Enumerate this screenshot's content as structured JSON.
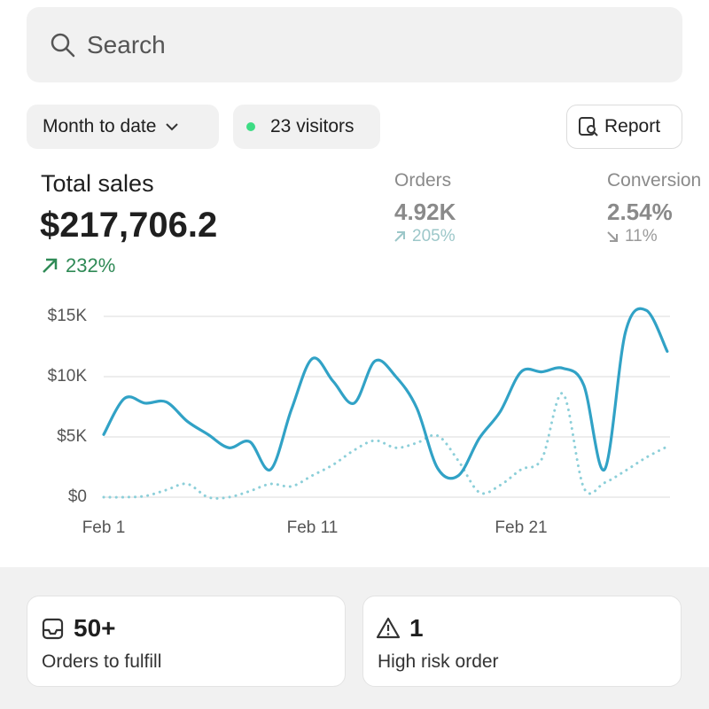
{
  "search": {
    "placeholder": "Search"
  },
  "filters": {
    "date_range": "Month to date",
    "visitors": "23 visitors",
    "report": "Report"
  },
  "metrics": [
    {
      "label": "Total sales",
      "value": "$217,706.2",
      "change": "232%"
    },
    {
      "label": "Orders",
      "value": "4.92K",
      "change": "205%"
    },
    {
      "label": "Conversion",
      "value": "2.54%",
      "change": "11%"
    }
  ],
  "cards": [
    {
      "value": "50+",
      "label": "Orders to fulfill"
    },
    {
      "value": "1",
      "label": "High risk order"
    }
  ],
  "chart_data": {
    "type": "line",
    "categories": [
      "Feb 1",
      null,
      null,
      null,
      null,
      null,
      null,
      null,
      null,
      null,
      "Feb 11",
      null,
      null,
      null,
      null,
      null,
      null,
      null,
      null,
      null,
      "Feb 21",
      null,
      null,
      null,
      null,
      null,
      null,
      null
    ],
    "series": [
      {
        "color": "#31a2c6",
        "style": "solid",
        "values": [
          5200,
          8200,
          7800,
          7900,
          6300,
          5200,
          4100,
          4600,
          2300,
          7300,
          11500,
          9600,
          7800,
          11300,
          10000,
          7400,
          2400,
          1800,
          4900,
          7100,
          10400,
          10400,
          10700,
          9300,
          2300,
          13700,
          15500,
          12100
        ]
      },
      {
        "color": "#8ccfd9",
        "style": "dotted",
        "values": [
          0,
          0,
          100,
          600,
          1100,
          0,
          0,
          500,
          1100,
          900,
          1800,
          2700,
          3900,
          4700,
          4100,
          4500,
          5100,
          3000,
          400,
          1000,
          2300,
          3200,
          8600,
          800,
          1200,
          2200,
          3300,
          4200
        ]
      }
    ],
    "ylim": [
      0,
      16000
    ],
    "yticks": [
      {
        "value": 0,
        "label": "$0"
      },
      {
        "value": 5000,
        "label": "$5K"
      },
      {
        "value": 10000,
        "label": "$10K"
      },
      {
        "value": 15000,
        "label": "$15K"
      }
    ],
    "grid": true
  }
}
